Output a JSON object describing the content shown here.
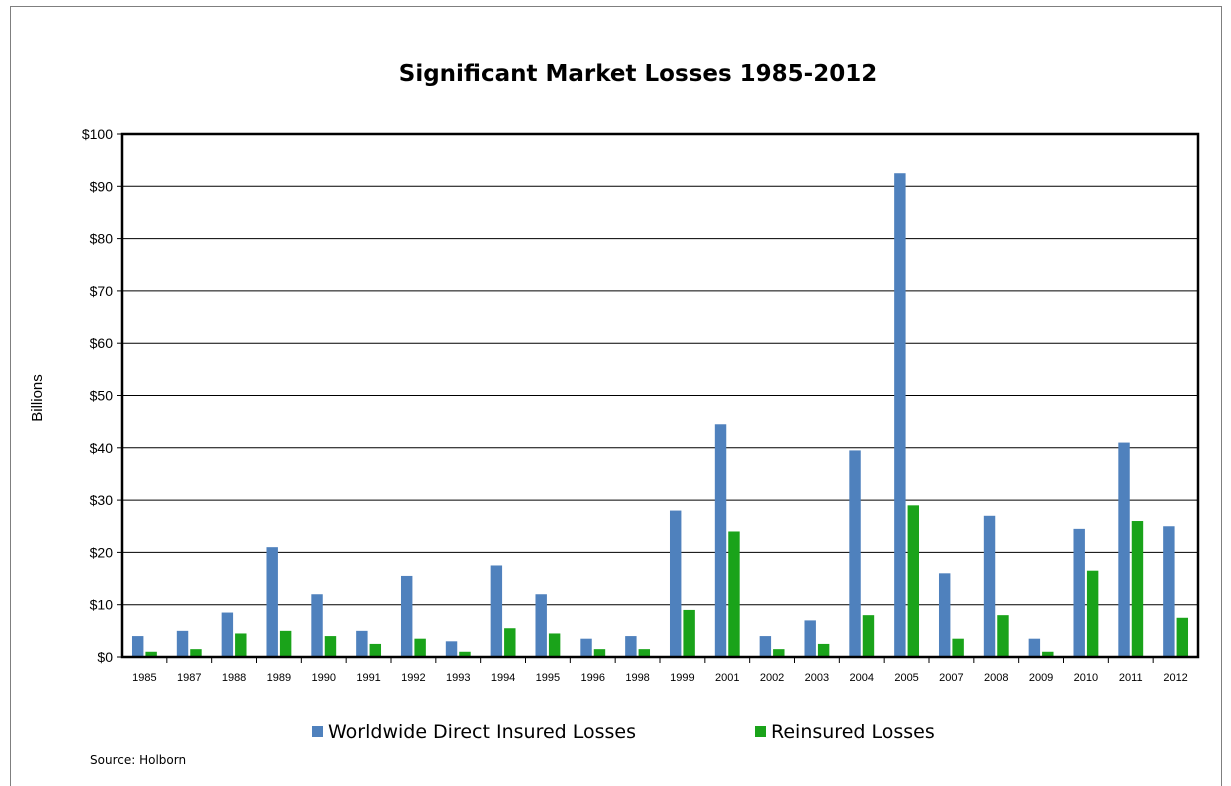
{
  "source_note": "Source:  Holborn",
  "colors": {
    "series1": "#4f81bd",
    "series2": "#1aa31a",
    "grid": "#000000",
    "plot_border": "#000000"
  },
  "chart_data": {
    "type": "bar",
    "title": "Significant Market Losses 1985-2012",
    "xlabel": "",
    "ylabel": "Billions",
    "ylim": [
      0,
      100
    ],
    "yticks": [
      0,
      10,
      20,
      30,
      40,
      50,
      60,
      70,
      80,
      90,
      100
    ],
    "ytick_labels": [
      "$0",
      "$10",
      "$20",
      "$30",
      "$40",
      "$50",
      "$60",
      "$70",
      "$80",
      "$90",
      "$100"
    ],
    "grid": true,
    "legend_position": "bottom",
    "categories": [
      "1985",
      "1987",
      "1988",
      "1989",
      "1990",
      "1991",
      "1992",
      "1993",
      "1994",
      "1995",
      "1996",
      "1998",
      "1999",
      "2001",
      "2002",
      "2003",
      "2004",
      "2005",
      "2007",
      "2008",
      "2009",
      "2010",
      "2011",
      "2012"
    ],
    "series": [
      {
        "name": "Worldwide Direct Insured Losses",
        "values": [
          4,
          5,
          8.5,
          21,
          12,
          5,
          15.5,
          3,
          17.5,
          12,
          3.5,
          4,
          28,
          44.5,
          4,
          7,
          39.5,
          92.5,
          16,
          27,
          3.5,
          24.5,
          41,
          25
        ]
      },
      {
        "name": "Reinsured Losses",
        "values": [
          1,
          1.5,
          4.5,
          5,
          4,
          2.5,
          3.5,
          1,
          5.5,
          4.5,
          1.5,
          1.5,
          9,
          24,
          1.5,
          2.5,
          8,
          29,
          3.5,
          8,
          1,
          16.5,
          26,
          7.5
        ]
      }
    ]
  }
}
